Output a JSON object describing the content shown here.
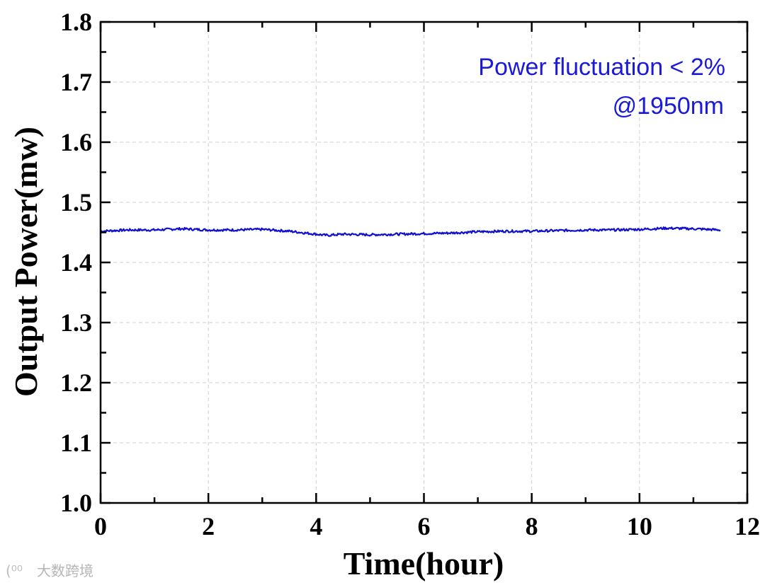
{
  "chart_data": {
    "type": "line",
    "xlabel": "Time(hour)",
    "ylabel": "Output Power(mw)",
    "xlim": [
      0,
      12
    ],
    "ylim": [
      1.0,
      1.8
    ],
    "x_ticks": [
      "0",
      "2",
      "4",
      "6",
      "8",
      "10",
      "12"
    ],
    "y_ticks": [
      "1.0",
      "1.1",
      "1.2",
      "1.3",
      "1.4",
      "1.5",
      "1.6",
      "1.7",
      "1.8"
    ],
    "grid": true,
    "annotations": [
      "Power fluctuation < 2%",
      "@1950nm"
    ],
    "series": [
      {
        "color": "#1010d0",
        "x": [
          0,
          0.5,
          1.0,
          1.5,
          2.0,
          2.5,
          3.0,
          3.5,
          4.0,
          4.2,
          4.5,
          5.0,
          5.5,
          6.0,
          6.5,
          7.0,
          7.5,
          8.0,
          8.5,
          9.0,
          9.5,
          10.0,
          10.5,
          11.0,
          11.5
        ],
        "y": [
          1.452,
          1.454,
          1.454,
          1.456,
          1.454,
          1.454,
          1.455,
          1.452,
          1.447,
          1.445,
          1.447,
          1.446,
          1.447,
          1.448,
          1.449,
          1.451,
          1.452,
          1.452,
          1.453,
          1.454,
          1.454,
          1.455,
          1.457,
          1.456,
          1.454
        ]
      }
    ]
  },
  "colors": {
    "series": "#1010d0",
    "annotation": "#1a1ad8",
    "grid": "#cfcfcf",
    "axis": "#000000"
  },
  "watermark": "大数跨境"
}
